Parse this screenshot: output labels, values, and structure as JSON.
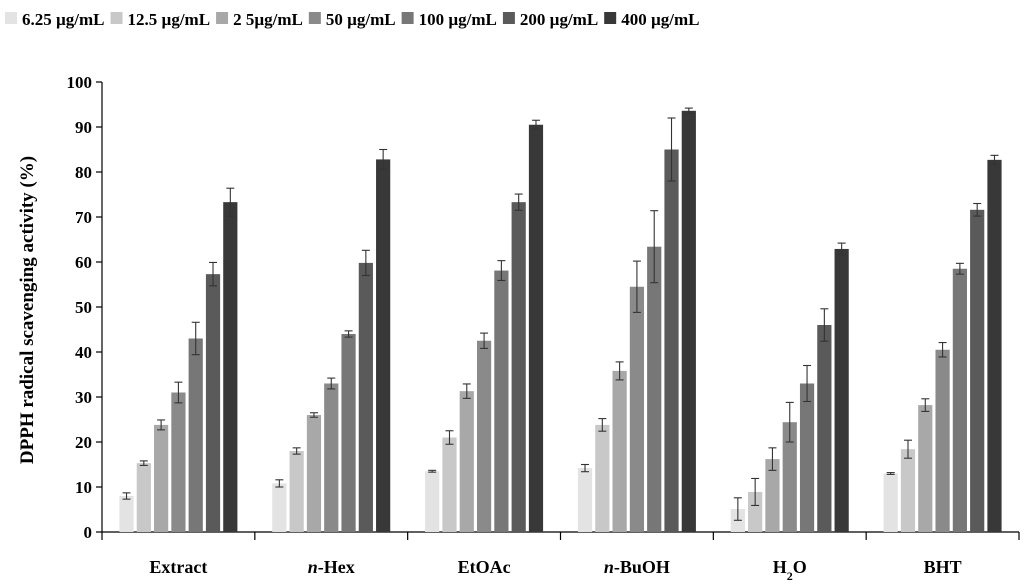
{
  "chart_data": {
    "type": "bar",
    "ylabel": "DPPH radical scavenging activity (%)",
    "xlabel": "",
    "ylim": [
      0,
      100
    ],
    "yticks": [
      0,
      10,
      20,
      30,
      40,
      50,
      60,
      70,
      80,
      90,
      100
    ],
    "legend_position": "top",
    "categories": [
      {
        "pre": "",
        "italic": "",
        "main": "Extract",
        "sub": "",
        "post": ""
      },
      {
        "pre": "",
        "italic": "n",
        "main": "-Hex",
        "sub": "",
        "post": ""
      },
      {
        "pre": "",
        "italic": "",
        "main": "EtOAc",
        "sub": "",
        "post": ""
      },
      {
        "pre": "",
        "italic": "n",
        "main": "-BuOH",
        "sub": "",
        "post": ""
      },
      {
        "pre": "H",
        "italic": "",
        "main": "",
        "sub": "2",
        "post": "O"
      },
      {
        "pre": "",
        "italic": "",
        "main": "BHT",
        "sub": "",
        "post": ""
      }
    ],
    "series": [
      {
        "name": "6.25 µg/mL",
        "color": "#e3e3e3",
        "values": [
          8.0,
          10.8,
          13.5,
          14.2,
          5.1,
          13.0
        ],
        "errors": [
          0.7,
          0.8,
          0.2,
          0.8,
          2.5,
          0.2
        ]
      },
      {
        "name": "12.5 µg/mL",
        "color": "#c8c8c8",
        "values": [
          15.3,
          18.0,
          21.0,
          23.8,
          8.9,
          18.4
        ],
        "errors": [
          0.5,
          0.7,
          1.5,
          1.4,
          3.0,
          2.0
        ]
      },
      {
        "name": "2 5µg/mL",
        "color": "#a8a8a8",
        "values": [
          23.8,
          26.0,
          31.3,
          35.8,
          16.2,
          28.2
        ],
        "errors": [
          1.1,
          0.5,
          1.6,
          2.0,
          2.5,
          1.4
        ]
      },
      {
        "name": "50 µg/mL",
        "color": "#8a8a8a",
        "values": [
          31.0,
          33.0,
          42.5,
          54.5,
          24.4,
          40.5
        ],
        "errors": [
          2.3,
          1.2,
          1.7,
          5.7,
          4.4,
          1.6
        ]
      },
      {
        "name": "100 µg/mL",
        "color": "#777777",
        "values": [
          43.0,
          44.0,
          58.1,
          63.4,
          33.0,
          58.5
        ],
        "errors": [
          3.6,
          0.7,
          2.2,
          8.0,
          4.0,
          1.2
        ]
      },
      {
        "name": "200 µg/mL",
        "color": "#5a5a5a",
        "values": [
          57.3,
          59.8,
          73.3,
          85.0,
          46.0,
          71.6
        ],
        "errors": [
          2.6,
          2.8,
          1.8,
          7.0,
          3.6,
          1.4
        ]
      },
      {
        "name": "400 µg/mL",
        "color": "#383838",
        "values": [
          73.3,
          82.8,
          90.5,
          93.6,
          62.9,
          82.7
        ],
        "errors": [
          3.1,
          2.2,
          1.0,
          0.6,
          1.3,
          1.0
        ]
      }
    ]
  }
}
